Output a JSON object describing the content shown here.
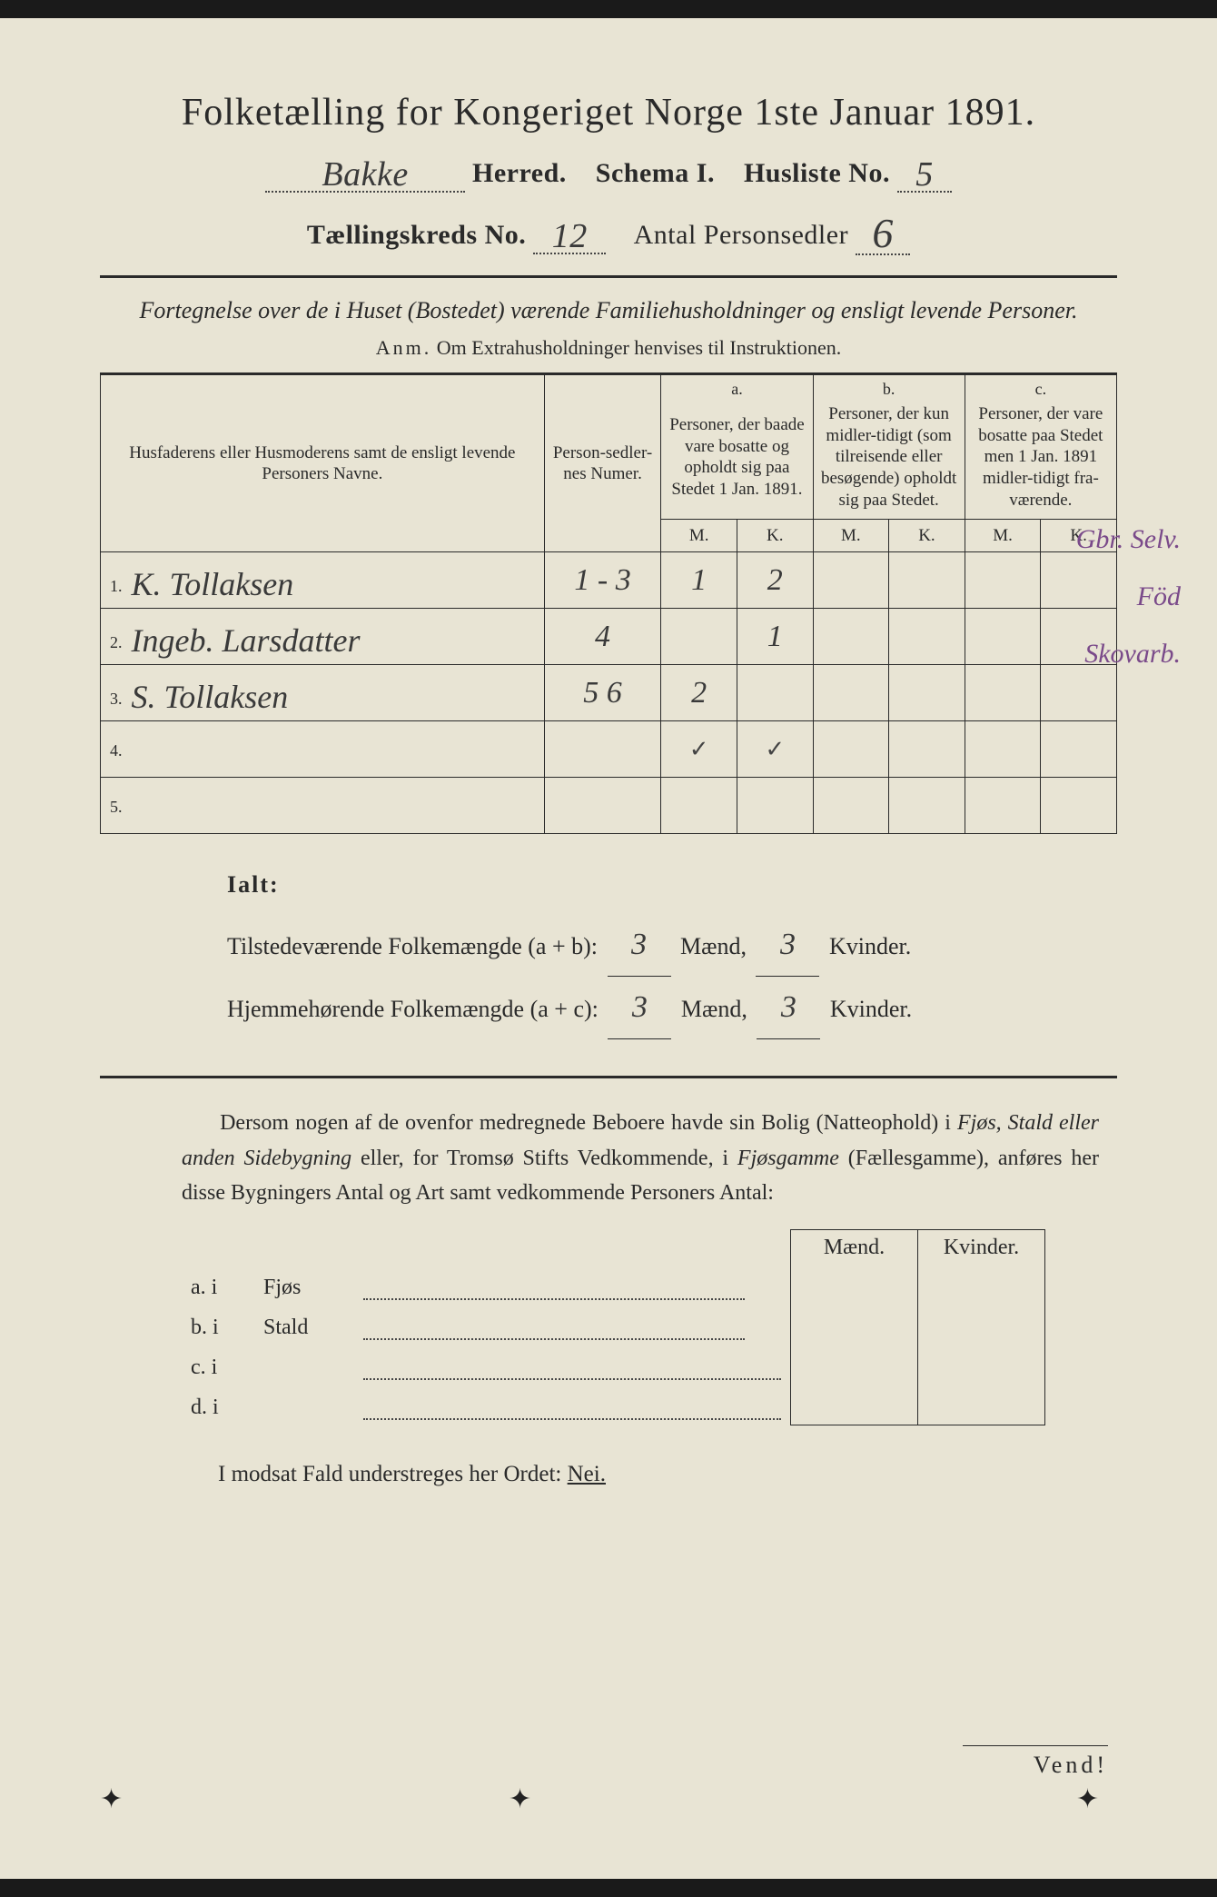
{
  "title": "Folketælling for Kongeriget Norge 1ste Januar 1891.",
  "header": {
    "herred_value": "Bakke",
    "herred_label": "Herred.",
    "schema_label": "Schema I.",
    "husliste_label": "Husliste No.",
    "husliste_value": "5",
    "kreds_label": "Tællingskreds No.",
    "kreds_value": "12",
    "antal_label": "Antal Personsedler",
    "antal_value": "6"
  },
  "subtitle": "Fortegnelse over de i Huset (Bostedet) værende Familiehusholdninger og ensligt levende Personer.",
  "anm_prefix": "Anm.",
  "anm_text": "Om Extrahusholdninger henvises til Instruktionen.",
  "columns": {
    "name": "Husfaderens eller Husmoderens samt de ensligt levende Personers Navne.",
    "num": "Person-sedler-nes Numer.",
    "a_label": "a.",
    "a_text": "Personer, der baade vare bosatte og opholdt sig paa Stedet 1 Jan. 1891.",
    "b_label": "b.",
    "b_text": "Personer, der kun midler-tidigt (som tilreisende eller besøgende) opholdt sig paa Stedet.",
    "c_label": "c.",
    "c_text": "Personer, der vare bosatte paa Stedet men 1 Jan. 1891 midler-tidigt fra-værende.",
    "M": "M.",
    "K": "K."
  },
  "rows": [
    {
      "n": "1.",
      "name": "K. Tollaksen",
      "num": "1 - 3",
      "aM": "1",
      "aK": "2",
      "bM": "",
      "bK": "",
      "cM": "",
      "cK": "",
      "note": "Gbr. Selv."
    },
    {
      "n": "2.",
      "name": "Ingeb. Larsdatter",
      "num": "4",
      "aM": "",
      "aK": "1",
      "bM": "",
      "bK": "",
      "cM": "",
      "cK": "",
      "note": "Föd"
    },
    {
      "n": "3.",
      "name": "S. Tollaksen",
      "num": "5 6",
      "aM": "2",
      "aK": "",
      "bM": "",
      "bK": "",
      "cM": "",
      "cK": "",
      "note": "Skovarb."
    },
    {
      "n": "4.",
      "name": "",
      "num": "",
      "aM": "✓",
      "aK": "✓",
      "bM": "",
      "bK": "",
      "cM": "",
      "cK": "",
      "note": ""
    },
    {
      "n": "5.",
      "name": "",
      "num": "",
      "aM": "",
      "aK": "",
      "bM": "",
      "bK": "",
      "cM": "",
      "cK": "",
      "note": ""
    }
  ],
  "ialt": {
    "label": "Ialt:",
    "line1_pre": "Tilstedeværende Folkemængde (a + b):",
    "line2_pre": "Hjemmehørende Folkemængde (a + c):",
    "maend": "Mænd,",
    "kvinder": "Kvinder.",
    "v1m": "3",
    "v1k": "3",
    "v2m": "3",
    "v2k": "3"
  },
  "para": "Dersom nogen af de ovenfor medregnede Beboere havde sin Bolig (Natteophold) i Fjøs, Stald eller anden Sidebygning eller, for Tromsø Stifts Vedkommende, i Fjøsgamme (Fællesgamme), anføres her disse Bygningers Antal og Art samt vedkommende Personers Antal:",
  "buildings": {
    "maend": "Mænd.",
    "kvinder": "Kvinder.",
    "rows": [
      {
        "lbl": "a.  i",
        "name": "Fjøs"
      },
      {
        "lbl": "b.  i",
        "name": "Stald"
      },
      {
        "lbl": "c.  i",
        "name": ""
      },
      {
        "lbl": "d.  i",
        "name": ""
      }
    ]
  },
  "nei_line_pre": "I modsat Fald understreges her Ordet:",
  "nei": "Nei.",
  "vend": "Vend!"
}
